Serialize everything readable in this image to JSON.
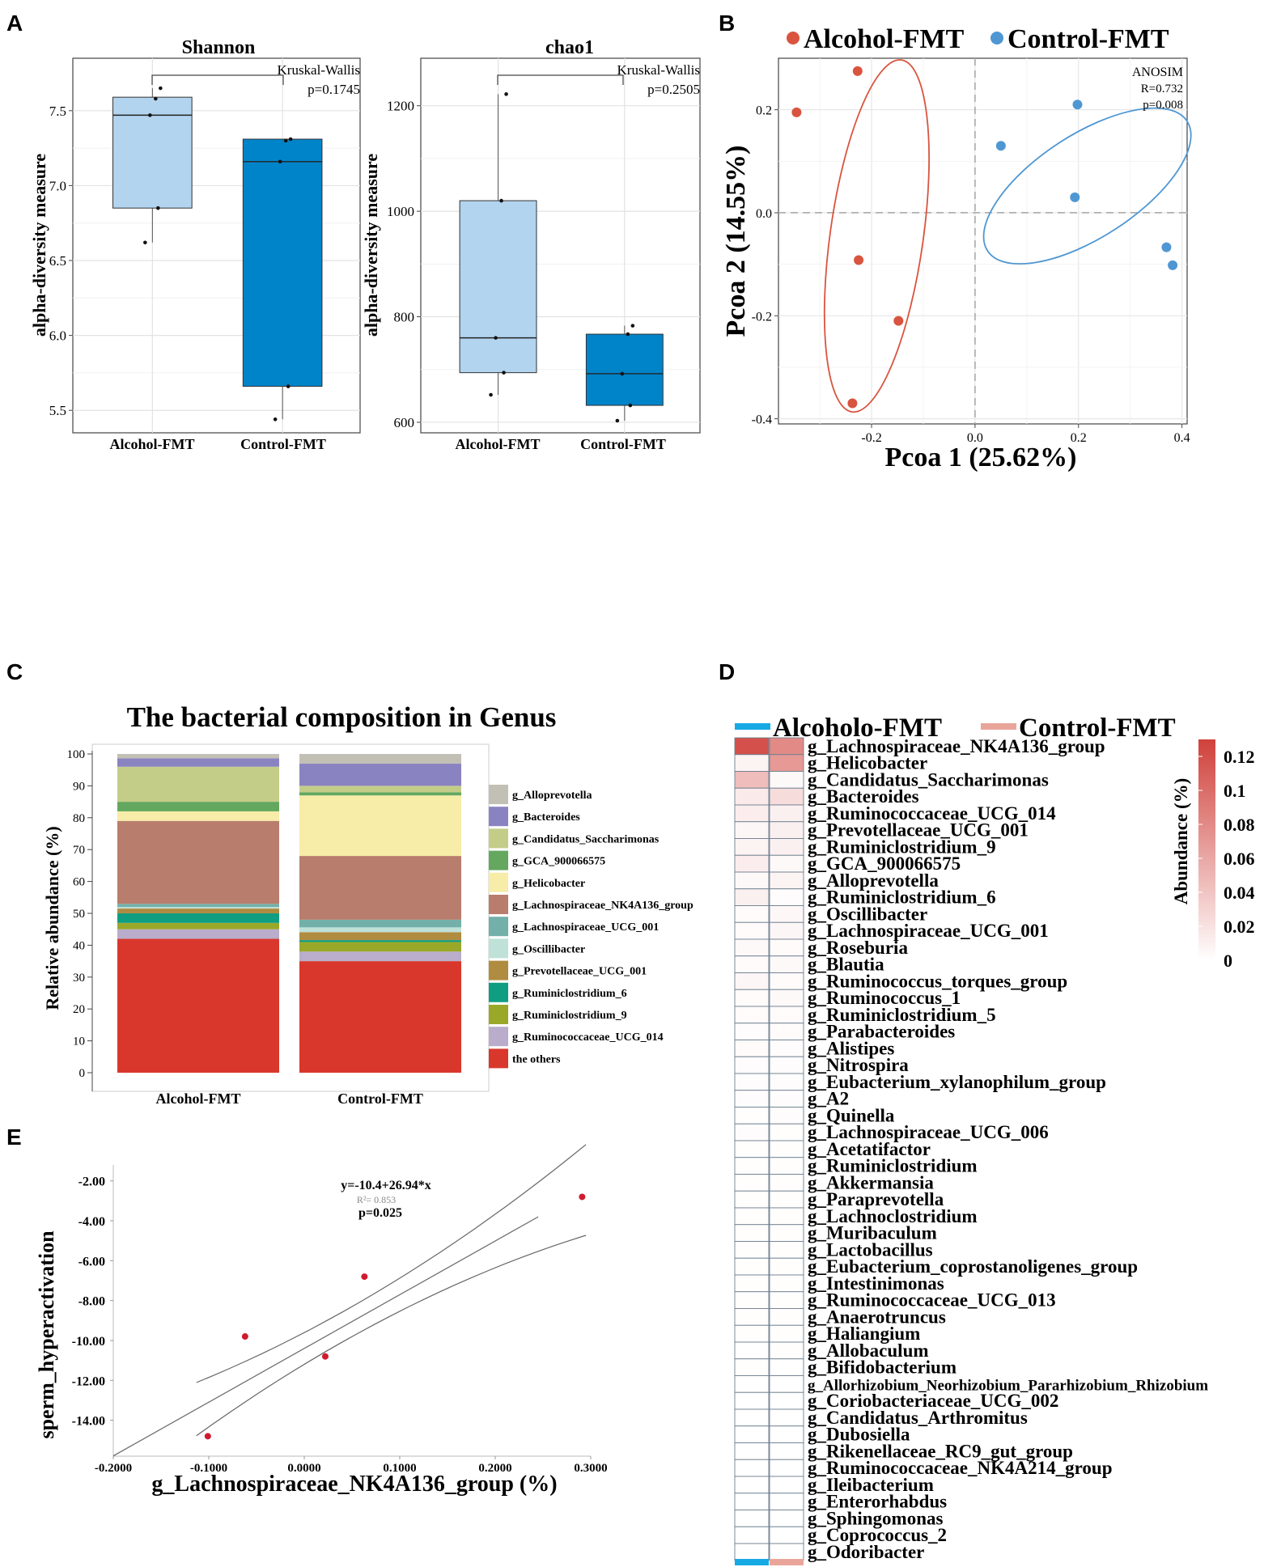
{
  "panels": {
    "A": "A",
    "B": "B",
    "C": "C",
    "D": "D",
    "E": "E"
  },
  "colors": {
    "alcohol": "#d9543f",
    "control": "#4f97d3",
    "box_alcohol": "#b2d4ef",
    "box_control": "#0084c9",
    "heat_high": "#d0413b",
    "heat_low": "#ffffff",
    "legend_alcohol_bar": "#17a9e4",
    "legend_control_bar": "#eaa59b",
    "regression_point": "#d01b2e"
  },
  "chart_data": [
    {
      "id": "A-shannon",
      "type": "box",
      "title": "Shannon",
      "ylabel": "alpha-diversity measure",
      "ylim": [
        5.35,
        7.85
      ],
      "yticks": [
        "5.5",
        "6.0",
        "6.5",
        "7.0",
        "7.5"
      ],
      "categories": [
        "Alcohol-FMT",
        "Control-FMT"
      ],
      "boxes": [
        {
          "name": "Alcohol-FMT",
          "min": 6.62,
          "q1": 6.85,
          "median": 7.47,
          "q3": 7.59,
          "max": 7.65,
          "points": [
            6.62,
            6.85,
            7.47,
            7.58,
            7.65
          ]
        },
        {
          "name": "Control-FMT",
          "min": 5.44,
          "q1": 5.66,
          "median": 7.16,
          "q3": 7.31,
          "max": 7.31,
          "points": [
            5.44,
            5.66,
            7.16,
            7.3,
            7.31
          ]
        }
      ],
      "test": "Kruskal-Wallis",
      "p": "p=0.1745"
    },
    {
      "id": "A-chao1",
      "type": "box",
      "title": "chao1",
      "ylabel": "alpha-diversity measure",
      "ylim": [
        580,
        1290
      ],
      "yticks": [
        "600",
        "800",
        "1000",
        "1200"
      ],
      "categories": [
        "Alcohol-FMT",
        "Control-FMT"
      ],
      "boxes": [
        {
          "name": "Alcohol-FMT",
          "min": 652,
          "q1": 694,
          "median": 760,
          "q3": 1020,
          "max": 1222,
          "points": [
            652,
            694,
            760,
            1020,
            1222
          ]
        },
        {
          "name": "Control-FMT",
          "min": 603,
          "q1": 632,
          "median": 692,
          "q3": 767,
          "max": 783,
          "points": [
            603,
            632,
            692,
            767,
            783
          ]
        }
      ],
      "test": "Kruskal-Wallis",
      "p": "p=0.2505"
    },
    {
      "id": "B",
      "type": "scatter",
      "xlabel": "Pcoa 1 (25.62%)",
      "ylabel": "Pcoa 2 (14.55%)",
      "xlim": [
        -0.38,
        0.41
      ],
      "ylim": [
        -0.41,
        0.3
      ],
      "xticks": [
        "-0.2",
        "0.0",
        "0.2",
        "0.4"
      ],
      "yticks": [
        "-0.4",
        "-0.2",
        "0.0",
        "0.2"
      ],
      "series": [
        {
          "name": "Alcohol-FMT",
          "points": [
            [
              -0.345,
              0.195
            ],
            [
              -0.227,
              0.275
            ],
            [
              -0.225,
              -0.092
            ],
            [
              -0.148,
              -0.21
            ],
            [
              -0.237,
              -0.37
            ]
          ]
        },
        {
          "name": "Control-FMT",
          "points": [
            [
              0.05,
              0.13
            ],
            [
              0.198,
              0.21
            ],
            [
              0.193,
              0.03
            ],
            [
              0.37,
              -0.067
            ],
            [
              0.382,
              -0.102
            ]
          ]
        }
      ],
      "ellipses": [
        {
          "group": "Alcohol-FMT",
          "center": [
            -0.19,
            -0.045
          ],
          "rx": 0.09,
          "ry": 0.345,
          "angle": 8
        },
        {
          "group": "Control-FMT",
          "center": [
            0.217,
            0.052
          ],
          "rx": 0.23,
          "ry": 0.1,
          "angle": -33
        }
      ],
      "annotation": {
        "title": "ANOSIM",
        "r": "R=0.732",
        "p": "p=0.008"
      }
    },
    {
      "id": "C",
      "type": "stacked-bar",
      "title": "The bacterial composition in Genus",
      "ylabel": "Relative abundance (%)",
      "ylim": [
        0,
        100
      ],
      "yticks": [
        "0",
        "10",
        "20",
        "30",
        "40",
        "50",
        "60",
        "70",
        "80",
        "90",
        "100"
      ],
      "categories": [
        "Alcohol-FMT",
        "Control-FMT"
      ],
      "series": [
        {
          "name": "the others",
          "color": "#d9372c",
          "values": [
            42.0,
            35.0
          ]
        },
        {
          "name": "g_Ruminococcaceae_UCG_014",
          "color": "#b9adcb",
          "values": [
            3.0,
            3.0
          ]
        },
        {
          "name": "g_Ruminiclostridium_9",
          "color": "#9aa82a",
          "values": [
            2.0,
            3.0
          ]
        },
        {
          "name": "g_Ruminiclostridium_6",
          "color": "#109e82",
          "values": [
            3.0,
            0.6
          ]
        },
        {
          "name": "g_Prevotellaceae_UCG_001",
          "color": "#b08c40",
          "values": [
            1.5,
            2.5
          ]
        },
        {
          "name": "g_Oscillibacter",
          "color": "#bfe1d8",
          "values": [
            0.5,
            1.5
          ]
        },
        {
          "name": "g_Lachnospiraceae_UCG_001",
          "color": "#74b0aa",
          "values": [
            1.0,
            2.4
          ]
        },
        {
          "name": "g_Lachnospiraceae_NK4A136_group",
          "color": "#b87d6c",
          "values": [
            26.0,
            20.0
          ]
        },
        {
          "name": "g_Helicobacter",
          "color": "#f7eca8",
          "values": [
            3.0,
            19.0
          ]
        },
        {
          "name": "g_GCA_900066575",
          "color": "#63a85e",
          "values": [
            3.0,
            1.0
          ]
        },
        {
          "name": "g_Candidatus_Saccharimonas",
          "color": "#c4cd88",
          "values": [
            11.0,
            2.0
          ]
        },
        {
          "name": "g_Bacteroides",
          "color": "#8a83c2",
          "values": [
            2.6,
            7.0
          ]
        },
        {
          "name": "g_Alloprevotella",
          "color": "#c2bfb5",
          "values": [
            1.4,
            3.0
          ]
        }
      ]
    },
    {
      "id": "D",
      "type": "heatmap",
      "legend": [
        "Alcoholo-FMT",
        "Control-FMT"
      ],
      "colorbar": {
        "label": "Abundance (%)",
        "ticks": [
          "0.12",
          "0.1",
          "0.08",
          "0.06",
          "0.04",
          "0.02",
          "0"
        ],
        "max": 0.13
      },
      "columns": [
        "Alcohol-FMT",
        "Control-FMT"
      ],
      "rows": [
        {
          "name": "g_Lachnospiraceae_NK4A136_group",
          "values": [
            0.12,
            0.08
          ]
        },
        {
          "name": "g_Helicobacter",
          "values": [
            0.008,
            0.07
          ]
        },
        {
          "name": "g_Candidatus_Saccharimonas",
          "values": [
            0.045,
            0.004
          ]
        },
        {
          "name": "g_Bacteroides",
          "values": [
            0.014,
            0.024
          ]
        },
        {
          "name": "g_Ruminococcaceae_UCG_014",
          "values": [
            0.012,
            0.01
          ]
        },
        {
          "name": "g_Prevotellaceae_UCG_001",
          "values": [
            0.006,
            0.01
          ]
        },
        {
          "name": "g_Ruminiclostridium_9",
          "values": [
            0.008,
            0.01
          ]
        },
        {
          "name": "g_GCA_900066575",
          "values": [
            0.012,
            0.004
          ]
        },
        {
          "name": "g_Alloprevotella",
          "values": [
            0.004,
            0.008
          ]
        },
        {
          "name": "g_Ruminiclostridium_6",
          "values": [
            0.01,
            0.002
          ]
        },
        {
          "name": "g_Oscillibacter",
          "values": [
            0.003,
            0.005
          ]
        },
        {
          "name": "g_Lachnospiraceae_UCG_001",
          "values": [
            0.003,
            0.006
          ]
        },
        {
          "name": "g_Roseburia",
          "values": [
            0.004,
            0.003
          ]
        },
        {
          "name": "g_Blautia",
          "values": [
            0.003,
            0.004
          ]
        },
        {
          "name": "g_Ruminococcus_torques_group",
          "values": [
            0.006,
            0.003
          ]
        },
        {
          "name": "g_Ruminococcus_1",
          "values": [
            0.003,
            0.004
          ]
        },
        {
          "name": "g_Ruminiclostridium_5",
          "values": [
            0.003,
            0.003
          ]
        },
        {
          "name": "g_Parabacteroides",
          "values": [
            0.002,
            0.003
          ]
        },
        {
          "name": "g_Alistipes",
          "values": [
            0.003,
            0.002
          ]
        },
        {
          "name": "g_Nitrospira",
          "values": [
            0.002,
            0.002
          ]
        },
        {
          "name": "g_Eubacterium_xylanophilum_group",
          "values": [
            0.002,
            0.002
          ]
        },
        {
          "name": "g_A2",
          "values": [
            0.002,
            0.002
          ]
        },
        {
          "name": "g_Quinella",
          "values": [
            0.001,
            0.002
          ]
        },
        {
          "name": "g_Lachnospiraceae_UCG_006",
          "values": [
            0.002,
            0.001
          ]
        },
        {
          "name": "g_Acetatifactor",
          "values": [
            0.001,
            0.001
          ]
        },
        {
          "name": "g_Ruminiclostridium",
          "values": [
            0.001,
            0.001
          ]
        },
        {
          "name": "g_Akkermansia",
          "values": [
            0.001,
            0.001
          ]
        },
        {
          "name": "g_Paraprevotella",
          "values": [
            0.001,
            0.001
          ]
        },
        {
          "name": "g_Lachnoclostridium",
          "values": [
            0.001,
            0.001
          ]
        },
        {
          "name": "g_Muribaculum",
          "values": [
            0.001,
            0.001
          ]
        },
        {
          "name": "g_Lactobacillus",
          "values": [
            0.001,
            0.001
          ]
        },
        {
          "name": "g_Eubacterium_coprostanoligenes_group",
          "values": [
            0.001,
            0.001
          ]
        },
        {
          "name": "g_Intestinimonas",
          "values": [
            0.001,
            0.001
          ]
        },
        {
          "name": "g_Ruminococcaceae_UCG_013",
          "values": [
            0.001,
            0.001
          ]
        },
        {
          "name": "g_Anaerotruncus",
          "values": [
            0.001,
            0.001
          ]
        },
        {
          "name": "g_Haliangium",
          "values": [
            0.001,
            0.001
          ]
        },
        {
          "name": "g_Allobaculum",
          "values": [
            0.0,
            0.001
          ]
        },
        {
          "name": "g_Bifidobacterium",
          "values": [
            0.001,
            0.0
          ]
        },
        {
          "name": "g_Allorhizobium_Neorhizobium_Pararhizobium_Rhizobium",
          "values": [
            0.0,
            0.0
          ]
        },
        {
          "name": "g_Coriobacteriaceae_UCG_002",
          "values": [
            0.0,
            0.0
          ]
        },
        {
          "name": "g_Candidatus_Arthromitus",
          "values": [
            0.0,
            0.0
          ]
        },
        {
          "name": "g_Dubosiella",
          "values": [
            0.0,
            0.0
          ]
        },
        {
          "name": "g_Rikenellaceae_RC9_gut_group",
          "values": [
            0.0,
            0.0
          ]
        },
        {
          "name": "g_Ruminococcaceae_NK4A214_group",
          "values": [
            0.0,
            0.0
          ]
        },
        {
          "name": "g_Ileibacterium",
          "values": [
            0.0,
            0.0
          ]
        },
        {
          "name": "g_Enterorhabdus",
          "values": [
            0.0,
            0.0
          ]
        },
        {
          "name": "g_Sphingomonas",
          "values": [
            0.0,
            0.0
          ]
        },
        {
          "name": "g_Coprococcus_2",
          "values": [
            0.0,
            0.0
          ]
        },
        {
          "name": "g_Odoribacter",
          "values": [
            0.0,
            0.0
          ]
        }
      ]
    },
    {
      "id": "E",
      "type": "scatter-regression",
      "xlabel": "g_Lachnospiraceae_NK4A136_group (%)",
      "ylabel": "sperm_hyperactivation",
      "xlim": [
        -0.2,
        0.3
      ],
      "ylim": [
        -15.8,
        -1.2
      ],
      "xticks": [
        "-0.2000",
        "-0.1000",
        "0.0000",
        "0.1000",
        "0.2000",
        "0.3000"
      ],
      "yticks": [
        "-2.00",
        "-4.00",
        "-6.00",
        "-8.00",
        "-10.00",
        "-12.00",
        "-14.00"
      ],
      "points": [
        [
          -0.101,
          -14.8
        ],
        [
          -0.062,
          -9.8
        ],
        [
          0.022,
          -10.8
        ],
        [
          0.063,
          -6.8
        ],
        [
          0.291,
          -2.8
        ]
      ],
      "fit": {
        "intercept": -10.4,
        "slope": 26.94
      },
      "equation": "y=-10.4+26.94*x",
      "r2": "R²= 0.853",
      "p": "p=0.025"
    }
  ]
}
